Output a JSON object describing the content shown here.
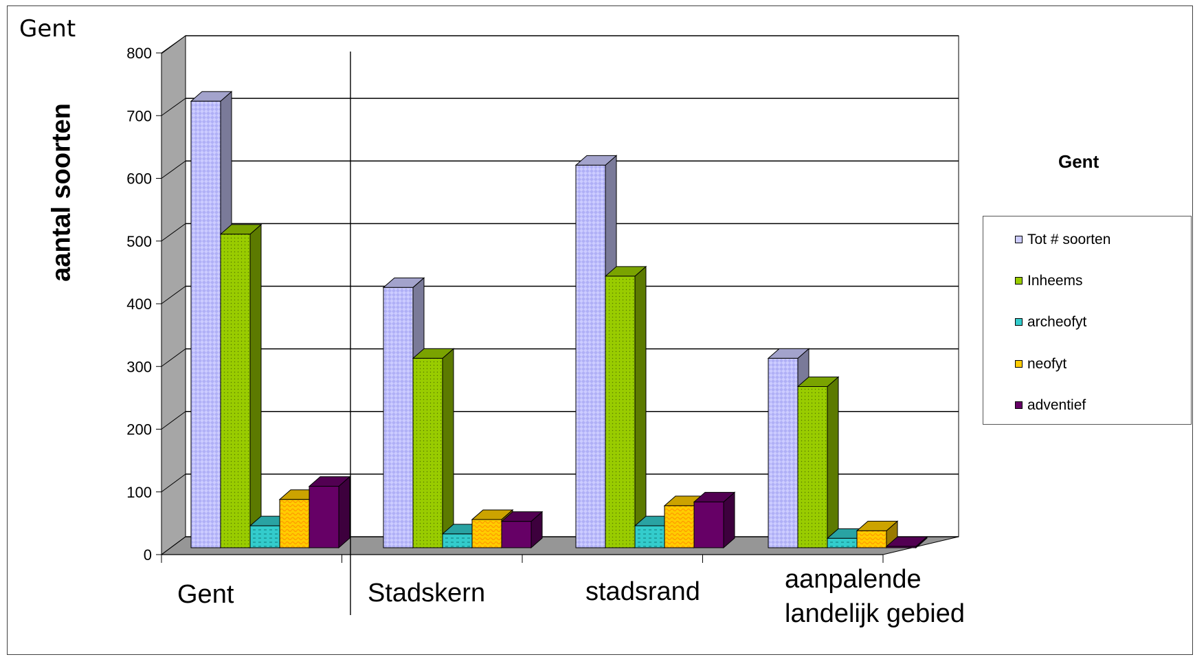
{
  "corner_title": "Gent",
  "colors": {
    "tot": "#ccccff",
    "inheems": "#99cc00",
    "archeofyt": "#33cccc",
    "neofyt": "#ffcc00",
    "adventief": "#660066",
    "wall": "#a6a6a6",
    "floor": "#969696"
  },
  "chart_data": {
    "type": "bar",
    "title": "Gent",
    "xlabel": "",
    "ylabel": "aantal soorten",
    "ylim": [
      0,
      800
    ],
    "yticks": [
      "0",
      "100",
      "200",
      "300",
      "400",
      "500",
      "600",
      "700",
      "800"
    ],
    "grid": true,
    "legend_position": "right",
    "categories": [
      "Gent",
      "Stadskern",
      "stadsrand",
      "aanpalende landelijk gebied"
    ],
    "category_lines": [
      [
        "Gent"
      ],
      [
        "Stadskern"
      ],
      [
        "stadsrand"
      ],
      [
        "aanpalende",
        "landelijk gebied"
      ]
    ],
    "series": [
      {
        "name": "Tot # soorten",
        "values": [
          712,
          415,
          610,
          302
        ]
      },
      {
        "name": "Inheems",
        "values": [
          500,
          302,
          433,
          257
        ]
      },
      {
        "name": "archeofyt",
        "values": [
          35,
          22,
          35,
          15
        ]
      },
      {
        "name": "neofyt",
        "values": [
          77,
          45,
          67,
          27
        ]
      },
      {
        "name": "adventief",
        "values": [
          98,
          42,
          73,
          2
        ]
      }
    ]
  }
}
